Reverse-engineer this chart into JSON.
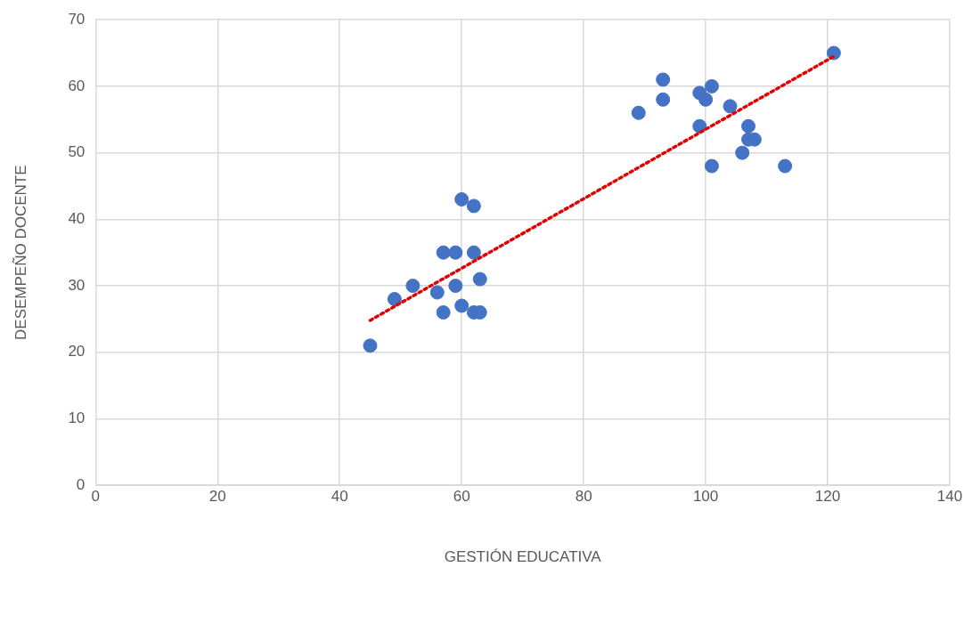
{
  "chart_data": {
    "type": "scatter",
    "xlabel": "GESTIÓN EDUCATIVA",
    "ylabel": "DESEMPEÑO DOCENTE",
    "xlim": [
      0,
      140
    ],
    "ylim": [
      0,
      70
    ],
    "xticks": [
      0,
      20,
      40,
      60,
      80,
      100,
      120,
      140
    ],
    "yticks": [
      0,
      10,
      20,
      30,
      40,
      50,
      60,
      70
    ],
    "grid": true,
    "marker": "circle",
    "series": [
      {
        "type": "scatter",
        "color": "#4472c4",
        "x": [
          45,
          49,
          52,
          56,
          57,
          57,
          59,
          59,
          60,
          60,
          62,
          62,
          62,
          63,
          63,
          89,
          93,
          93,
          99,
          99,
          100,
          101,
          101,
          104,
          106,
          107,
          107,
          108,
          113,
          121
        ],
        "values": [
          21,
          28,
          30,
          29,
          35,
          26,
          35,
          30,
          43,
          27,
          42,
          35,
          26,
          26,
          31,
          56,
          61,
          58,
          59,
          54,
          58,
          60,
          48,
          57,
          50,
          54,
          52,
          52,
          48,
          65
        ]
      },
      {
        "type": "line",
        "color": "#e00000",
        "line_style": "dotted",
        "marker": "none",
        "x": [
          45,
          121
        ],
        "values": [
          24.8,
          64.5
        ]
      }
    ]
  }
}
